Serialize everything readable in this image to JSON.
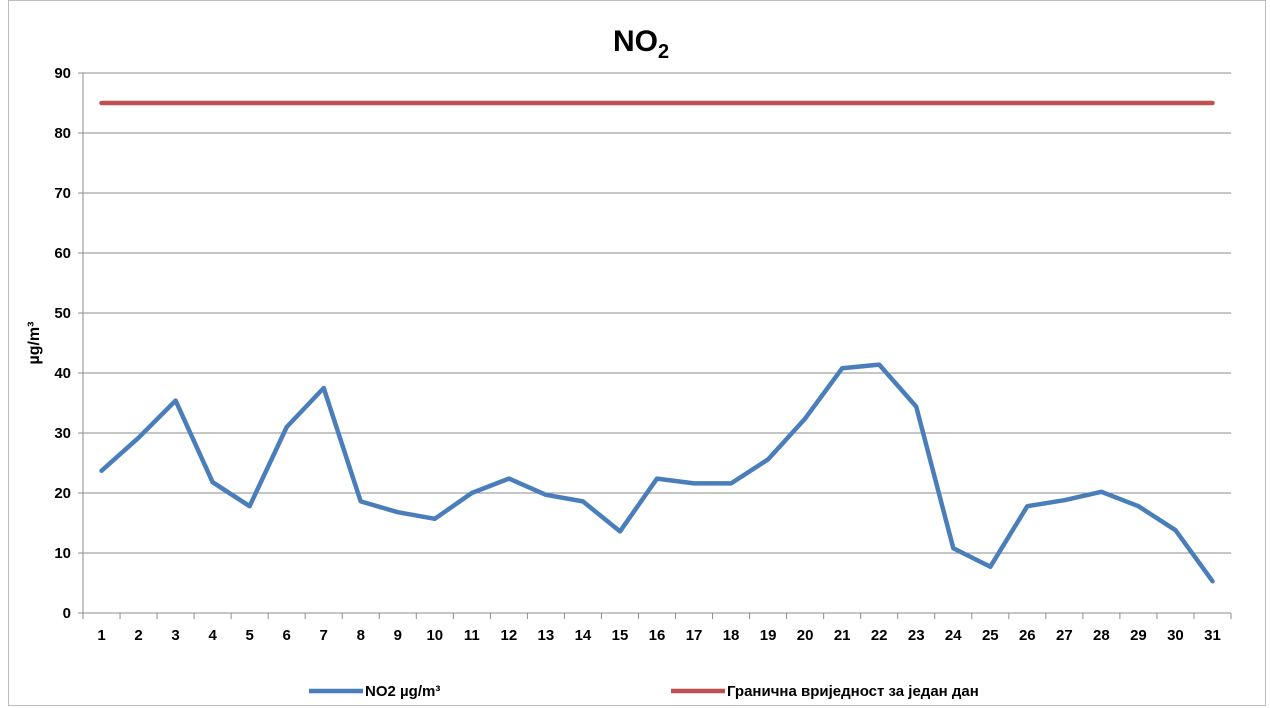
{
  "chart_data": {
    "type": "line",
    "title": "NO",
    "title_subscript": "2",
    "ylabel": "µg/m³",
    "xlabel": "",
    "ylim": [
      0,
      90
    ],
    "yticks": [
      0,
      10,
      20,
      30,
      40,
      50,
      60,
      70,
      80,
      90
    ],
    "grid": true,
    "legend_position": "bottom",
    "categories": [
      "1",
      "2",
      "3",
      "4",
      "5",
      "6",
      "7",
      "8",
      "9",
      "10",
      "11",
      "12",
      "13",
      "14",
      "15",
      "16",
      "17",
      "18",
      "19",
      "20",
      "21",
      "22",
      "23",
      "24",
      "25",
      "26",
      "27",
      "28",
      "29",
      "30",
      "31"
    ],
    "series": [
      {
        "name": "NO2 µg/m³",
        "color": "#4a7ebb",
        "values": [
          23.7,
          29.2,
          35.4,
          21.8,
          17.8,
          31.0,
          37.5,
          18.6,
          16.8,
          15.7,
          20.0,
          22.4,
          19.7,
          18.6,
          13.6,
          22.4,
          21.6,
          21.6,
          25.6,
          32.4,
          40.8,
          41.4,
          34.4,
          10.8,
          7.7,
          17.8,
          18.8,
          20.2,
          17.8,
          13.8,
          5.3
        ]
      },
      {
        "name": "Гранична вриједност за један дан",
        "color": "#c0504d",
        "values": [
          85,
          85,
          85,
          85,
          85,
          85,
          85,
          85,
          85,
          85,
          85,
          85,
          85,
          85,
          85,
          85,
          85,
          85,
          85,
          85,
          85,
          85,
          85,
          85,
          85,
          85,
          85,
          85,
          85,
          85,
          85
        ]
      }
    ]
  }
}
